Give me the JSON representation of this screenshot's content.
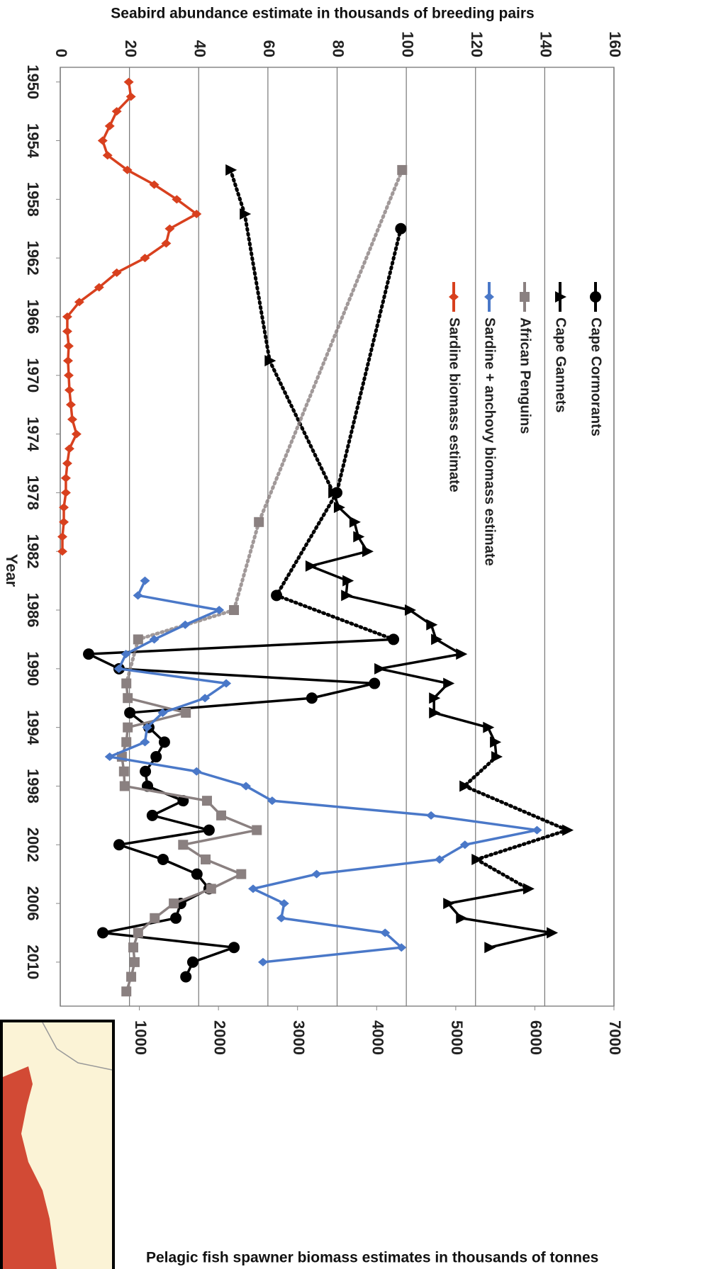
{
  "chart_data": {
    "type": "line",
    "title": "Seabird abundance estimate in thousands of breeding pairs",
    "y2_title": "Pelagic fish spawner biomass estimates in thousands of tonnes",
    "x_title": "Year",
    "xlim": [
      1949,
      2013
    ],
    "xticks": [
      1950,
      1954,
      1958,
      1962,
      1966,
      1970,
      1974,
      1978,
      1982,
      1986,
      1990,
      1994,
      1998,
      2002,
      2006,
      2010
    ],
    "ylim": [
      0,
      160
    ],
    "yticks": [
      0,
      20,
      40,
      60,
      80,
      100,
      120,
      140,
      160
    ],
    "y2lim": [
      0,
      7000
    ],
    "y2ticks": [
      1000,
      2000,
      3000,
      4000,
      5000,
      6000,
      7000
    ],
    "grid": true,
    "series": [
      {
        "name": "Cape Cormorants",
        "color": "#000000",
        "marker": "circle",
        "x": [
          1960,
          1978,
          1985,
          1988,
          1989,
          1990,
          1991,
          1992,
          1993,
          1994,
          1995,
          1996,
          1997,
          1998,
          1999,
          2000,
          2001,
          2002,
          2003,
          2004,
          2005,
          2006,
          2007,
          2008,
          2009,
          2010,
          2011
        ],
        "values": [
          98.4,
          79.9,
          62.5,
          96.3,
          8.2,
          17,
          90.8,
          72.7,
          20.1,
          25.6,
          30.1,
          27.7,
          24.6,
          25.2,
          35.5,
          26.6,
          43,
          17,
          29.7,
          39.5,
          43,
          34.8,
          33.4,
          12.3,
          50.2,
          38.3,
          36.3
        ]
      },
      {
        "name": "Cape Gannets",
        "color": "#000000",
        "marker": "triangle",
        "x": [
          1956,
          1959,
          1969,
          1978,
          1979,
          1980,
          1981,
          1982,
          1983,
          1984,
          1985,
          1986,
          1987,
          1988,
          1989,
          1990,
          1991,
          1992,
          1993,
          1994,
          1995,
          1996,
          1998,
          2001,
          2003,
          2005,
          2006,
          2007,
          2008,
          2009
        ],
        "values": [
          49.2,
          53.3,
          60.5,
          78.9,
          80.5,
          85,
          86.1,
          88.7,
          72.3,
          83,
          82.6,
          101,
          107.2,
          108.6,
          115.8,
          92.2,
          112.1,
          108,
          108,
          123.6,
          125.6,
          126,
          116.8,
          146.5,
          120.3,
          135.2,
          112.1,
          115.8,
          142,
          124
        ]
      },
      {
        "name": "African Penguins",
        "color": "#8a8080",
        "marker": "square",
        "x": [
          1956,
          1980,
          1986,
          1988,
          1991,
          1992,
          1993,
          1994,
          1995,
          1996,
          1997,
          1998,
          1999,
          2000,
          2001,
          2002,
          2003,
          2004,
          2005,
          2006,
          2007,
          2008,
          2009,
          2010,
          2011,
          2012
        ],
        "values": [
          98.8,
          57.4,
          50.2,
          22.5,
          19.1,
          19.5,
          36.3,
          19.5,
          19.1,
          17.8,
          18.4,
          18.6,
          42.4,
          46.5,
          56.8,
          35.5,
          42,
          52.3,
          43.6,
          32.8,
          27.3,
          22.5,
          21.1,
          21.5,
          20.5,
          19.1
        ]
      },
      {
        "name": "Sardine + anchovy biomass estimate",
        "color": "#4a78c8",
        "marker": "diamond",
        "axis": "y2",
        "x": [
          1984,
          1985,
          1986,
          1987,
          1988,
          1989,
          1990,
          1991,
          1992,
          1993,
          1994,
          1995,
          1996,
          1997,
          1998,
          1999,
          2000,
          2001,
          2002,
          2003,
          2004,
          2005,
          2006,
          2007,
          2008,
          2009,
          2010
        ],
        "values": [
          1071,
          982,
          2009,
          1580,
          1188,
          830,
          741,
          2098,
          1830,
          1295,
          1098,
          1071,
          625,
          1723,
          2348,
          2679,
          4688,
          6027,
          5116,
          4795,
          3241,
          2438,
          2830,
          2795,
          4107,
          4313,
          2563
        ]
      },
      {
        "name": "Sardine biomass estimate",
        "color": "#d8401e",
        "marker": "diamond",
        "axis": "y2",
        "x": [
          1950,
          1951,
          1952,
          1953,
          1954,
          1955,
          1956,
          1957,
          1958,
          1959,
          1960,
          1961,
          1962,
          1963,
          1964,
          1965,
          1966,
          1967,
          1968,
          1969,
          1970,
          1971,
          1972,
          1973,
          1974,
          1975,
          1976,
          1977,
          1978,
          1979,
          1980,
          1981,
          1982
        ],
        "values": [
          866,
          893,
          714,
          625,
          536,
          598,
          848,
          1188,
          1473,
          1723,
          1384,
          1339,
          1071,
          714,
          491,
          241,
          89,
          89,
          107,
          98,
          107,
          116,
          134,
          152,
          205,
          116,
          89,
          71,
          71,
          45,
          45,
          27,
          27
        ]
      }
    ]
  }
}
